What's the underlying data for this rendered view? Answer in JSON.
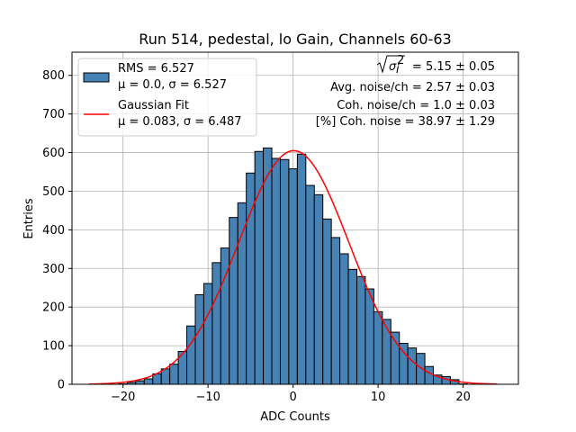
{
  "chart_data": {
    "type": "bar",
    "title": "Run 514, pedestal, lo Gain, Channels 60-63",
    "xlabel": "ADC Counts",
    "ylabel": "Entries",
    "xlim": [
      -26,
      26.5
    ],
    "ylim": [
      0,
      860
    ],
    "grid": true,
    "legend_position": "top-left",
    "bar_color": "#4682b4",
    "fit_color": "#ff0000",
    "bin_width": 1.0,
    "x_ticks": [
      -20,
      -10,
      0,
      10,
      20
    ],
    "x_tick_labels": [
      "−20",
      "−10",
      "0",
      "10",
      "20"
    ],
    "y_ticks": [
      0,
      100,
      200,
      300,
      400,
      500,
      600,
      700,
      800
    ],
    "y_tick_labels": [
      "0",
      "100",
      "200",
      "300",
      "400",
      "500",
      "600",
      "700",
      "800"
    ],
    "histogram": {
      "bin_centers": [
        -20,
        -19,
        -18,
        -17,
        -16,
        -15,
        -14,
        -13,
        -12,
        -11,
        -10,
        -9,
        -8,
        -7,
        -6,
        -5,
        -4,
        -3,
        -2,
        -1,
        0,
        1,
        2,
        3,
        4,
        5,
        6,
        7,
        8,
        9,
        10,
        11,
        12,
        13,
        14,
        15,
        16,
        17,
        18,
        19,
        20
      ],
      "values": [
        1,
        5,
        9,
        14,
        27,
        40,
        52,
        85,
        151,
        232,
        261,
        315,
        353,
        432,
        470,
        547,
        603,
        612,
        585,
        582,
        558,
        596,
        515,
        491,
        428,
        380,
        338,
        297,
        279,
        247,
        188,
        168,
        135,
        106,
        94,
        80,
        46,
        24,
        20,
        12,
        1
      ]
    },
    "gaussian_fit": {
      "mu": 0.083,
      "sigma": 6.487,
      "amplitude": 605,
      "x_range": [
        -24,
        24
      ]
    },
    "legend": [
      {
        "type": "patch",
        "line1": "RMS = 6.527",
        "line2": "μ = 0.0, σ = 6.527"
      },
      {
        "type": "line",
        "line1": "Gaussian Fit",
        "line2": "μ = 0.083, σ = 6.487"
      }
    ],
    "annotations": [
      {
        "label": "σ",
        "value": " = 5.15 ± 0.05"
      },
      {
        "text": "Avg. noise/ch = 2.57 ± 0.03"
      },
      {
        "text": "Coh. noise/ch = 1.0 ± 0.03"
      },
      {
        "text": "[%] Coh. noise = 38.97 ± 1.29"
      }
    ]
  }
}
